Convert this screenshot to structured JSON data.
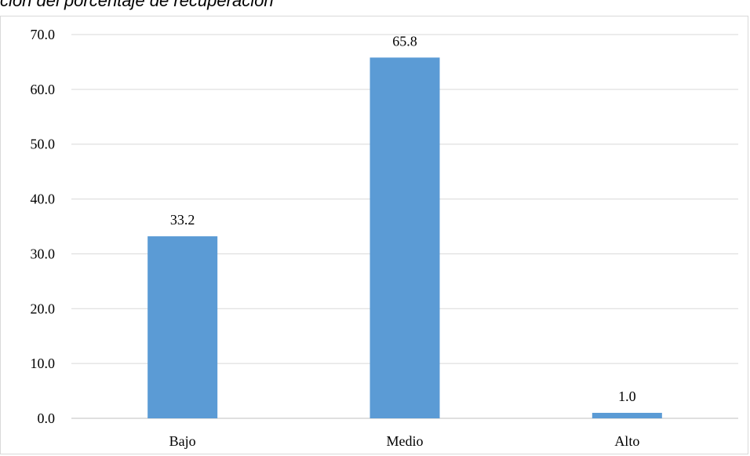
{
  "figure": {
    "caption_fragment": "ción del porcentaje de recuperación"
  },
  "colors": {
    "bar": "#5b9bd5",
    "grid": "#d9d9d9",
    "axis": "#bfbfbf"
  },
  "chart_data": {
    "type": "bar",
    "title": "",
    "xlabel": "",
    "ylabel": "",
    "categories": [
      "Bajo",
      "Medio",
      "Alto"
    ],
    "values": [
      33.2,
      65.8,
      1.0
    ],
    "data_labels": [
      "33.2",
      "65.8",
      "1.0"
    ],
    "ylim": [
      0,
      70
    ],
    "yticks": [
      "0.0",
      "10.0",
      "20.0",
      "30.0",
      "40.0",
      "50.0",
      "60.0",
      "70.0"
    ],
    "grid": true,
    "legend": "none"
  }
}
